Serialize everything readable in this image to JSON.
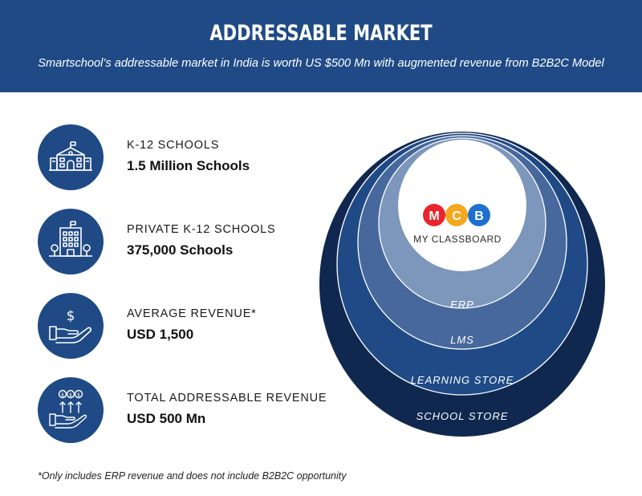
{
  "header": {
    "title": "ADDRESSABLE MARKET",
    "subtitle": "Smartschool’s addressable market in India is worth US $500 Mn with augmented revenue from B2B2C Model"
  },
  "stats": [
    {
      "icon": "school-building-icon",
      "label": "K-12 SCHOOLS",
      "value": "1.5 Million Schools"
    },
    {
      "icon": "office-building-icon",
      "label": "PRIVATE K-12 SCHOOLS",
      "value": "375,000 Schools"
    },
    {
      "icon": "hand-dollar-icon",
      "label": "AVERAGE REVENUE*",
      "value": "USD 1,500"
    },
    {
      "icon": "hand-coins-growth-icon",
      "label": "TOTAL ADDRESSABLE REVENUE",
      "value": "USD 500 Mn"
    }
  ],
  "diagram": {
    "rings": [
      {
        "label": "SCHOOL STORE",
        "color": "#10284f"
      },
      {
        "label": "LEARNING STORE",
        "color": "#1f4a86"
      },
      {
        "label": "LMS",
        "color": "#46689c"
      },
      {
        "label": "ERP",
        "color": "#7d96bb"
      }
    ],
    "logo": {
      "letters": [
        "M",
        "C",
        "B"
      ],
      "letter_colors": [
        "#e8262b",
        "#f4a81c",
        "#1f6fd0"
      ],
      "caption": "MY CLASSBOARD"
    }
  },
  "footnote": "*Only includes ERP revenue and does not include B2B2C opportunity"
}
